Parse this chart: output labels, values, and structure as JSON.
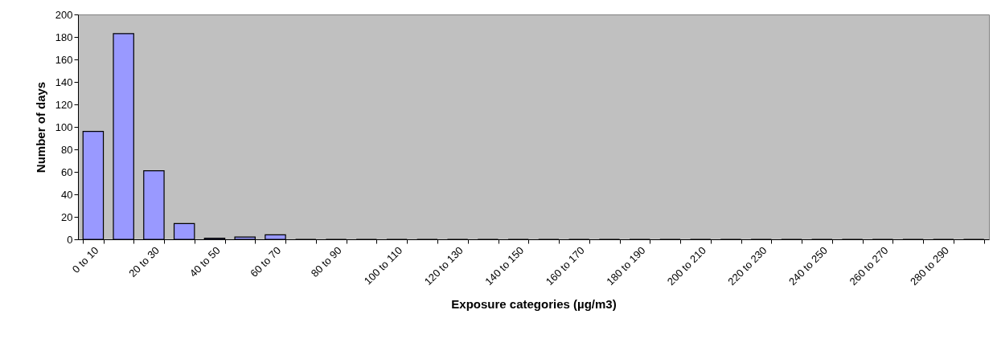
{
  "chart_data": {
    "type": "bar",
    "xlabel": "Exposure categories (µg/m3)",
    "ylabel": "Number of days",
    "categories": [
      "0 to 10",
      null,
      "20 to 30",
      null,
      "40 to 50",
      null,
      "60 to 70",
      null,
      "80 to 90",
      null,
      "100 to 110",
      null,
      "120 to 130",
      null,
      "140 to 150",
      null,
      "160 to 170",
      null,
      "180 to 190",
      null,
      "200 to 210",
      null,
      "220 to 230",
      null,
      "240 to 250",
      null,
      "260 to 270",
      null,
      "280 to 290",
      null
    ],
    "values": [
      96,
      183,
      61,
      14,
      1,
      2,
      4,
      0,
      0,
      0,
      0,
      0,
      0,
      0,
      0,
      0,
      0,
      0,
      0,
      0,
      0,
      0,
      0,
      0,
      0,
      0,
      0,
      0,
      0,
      0
    ],
    "color": "#9999ff",
    "ylim": [
      0,
      200
    ],
    "yticks": [
      0,
      20,
      40,
      60,
      80,
      100,
      120,
      140,
      160,
      180,
      200
    ]
  }
}
